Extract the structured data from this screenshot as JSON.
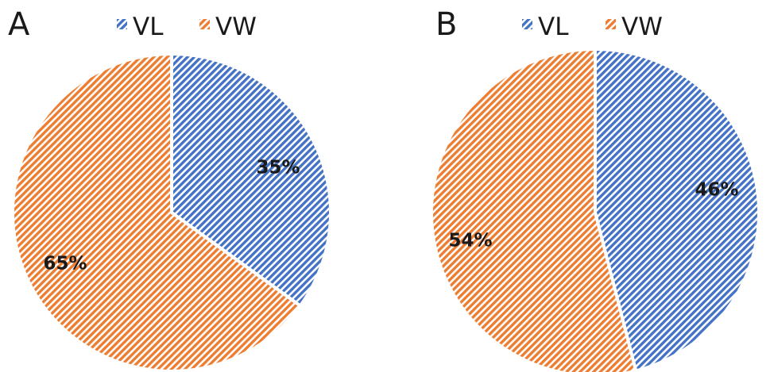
{
  "chart_data": [
    {
      "type": "pie",
      "panel_label": "A",
      "categories": [
        "VL",
        "VW"
      ],
      "values": [
        35,
        65
      ],
      "data_labels": [
        "35%",
        "65%"
      ],
      "legend": [
        "VL",
        "VW"
      ],
      "legend_position": "top",
      "colors": {
        "VL": "#4472c4",
        "VW": "#ed7d31"
      },
      "fill_pattern": "diagonal-hatch"
    },
    {
      "type": "pie",
      "panel_label": "B",
      "categories": [
        "VL",
        "VW"
      ],
      "values": [
        46,
        54
      ],
      "data_labels": [
        "46%",
        "54%"
      ],
      "legend": [
        "VL",
        "VW"
      ],
      "legend_position": "top",
      "colors": {
        "VL": "#4472c4",
        "VW": "#ed7d31"
      },
      "fill_pattern": "diagonal-hatch"
    }
  ]
}
